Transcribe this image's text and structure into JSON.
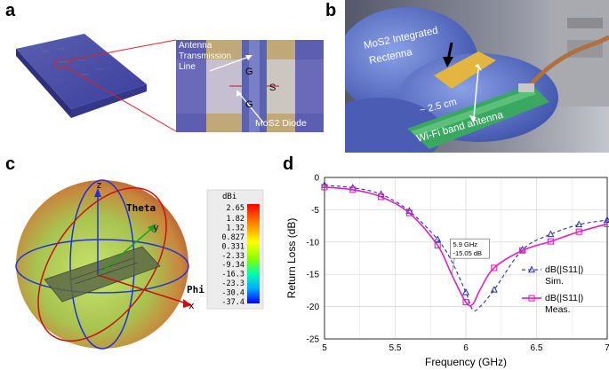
{
  "panels": {
    "a": "a",
    "b": "b",
    "c": "c",
    "d": "d"
  },
  "panel_a": {
    "label_line": "Antenna Transmission Line",
    "label_line_1": "Antenna",
    "label_line_2": "Transmission",
    "label_line_3": "Line",
    "label_g_top": "G",
    "label_g_bottom": "G",
    "label_s": "S",
    "label_diode": "MoS2 Diode"
  },
  "panel_b": {
    "label_rectenna_1": "MoS2 Integrated",
    "label_rectenna_2": "Rectenna",
    "label_size": "~ 2.5 cm",
    "label_antenna": "Wi-Fi band antenna"
  },
  "panel_c": {
    "axis_z": "z",
    "axis_y": "y",
    "axis_x": "x",
    "label_theta": "Theta",
    "label_phi": "Phi",
    "colorbar_unit": "dBi",
    "colorbar_ticks": [
      "2.65",
      "1.82",
      "1.32",
      "0.827",
      "0.331",
      "-2.33",
      "-9.34",
      "-16.3",
      "-23.3",
      "-30.4",
      "-37.4"
    ]
  },
  "chart_data": {
    "type": "line",
    "title": "",
    "xlabel": "Frequency (GHz)",
    "ylabel": "Return Loss (dB)",
    "xlim": [
      5,
      7
    ],
    "ylim": [
      -25,
      0
    ],
    "xticks": [
      "5",
      "5.5",
      "6",
      "6.5",
      "7"
    ],
    "yticks": [
      "0",
      "-5",
      "-10",
      "-15",
      "-20",
      "-25"
    ],
    "grid": true,
    "legend_position": "bottom-right",
    "annotation": {
      "line1": "5.9 GHz",
      "line2": "-15.05 dB",
      "x": 5.9,
      "y": -15.05
    },
    "series": [
      {
        "name": "dB(|S11|) Sim.",
        "legend_line1": "dB(|S11|)",
        "legend_line2": "Sim.",
        "color": "#2233aa",
        "style": "dashed",
        "marker": "triangle",
        "x": [
          5.0,
          5.2,
          5.4,
          5.6,
          5.8,
          5.9,
          6.0,
          6.05,
          6.1,
          6.2,
          6.4,
          6.6,
          6.8,
          7.0
        ],
        "y": [
          -1.2,
          -1.6,
          -2.6,
          -5.2,
          -9.6,
          -13.0,
          -17.8,
          -20.5,
          -20.0,
          -17.4,
          -11.2,
          -8.8,
          -7.3,
          -6.6
        ],
        "marker_x": [
          5.0,
          5.2,
          5.4,
          5.6,
          5.8,
          6.0,
          6.2,
          6.4,
          6.6,
          6.8,
          7.0
        ]
      },
      {
        "name": "dB(|S11|) Meas.",
        "legend_line1": "dB(|S11|)",
        "legend_line2": "Meas.",
        "color": "#e020c0",
        "style": "solid",
        "marker": "square",
        "x": [
          5.0,
          5.2,
          5.4,
          5.6,
          5.8,
          5.9,
          6.0,
          6.05,
          6.1,
          6.2,
          6.4,
          6.6,
          6.8,
          7.0
        ],
        "y": [
          -1.5,
          -1.9,
          -3.0,
          -5.5,
          -10.5,
          -15.05,
          -19.3,
          -19.6,
          -17.4,
          -14.0,
          -11.3,
          -9.9,
          -8.4,
          -7.2
        ],
        "marker_x": [
          5.0,
          5.2,
          5.4,
          5.6,
          5.8,
          6.0,
          6.2,
          6.4,
          6.6,
          6.8,
          7.0
        ]
      }
    ]
  }
}
